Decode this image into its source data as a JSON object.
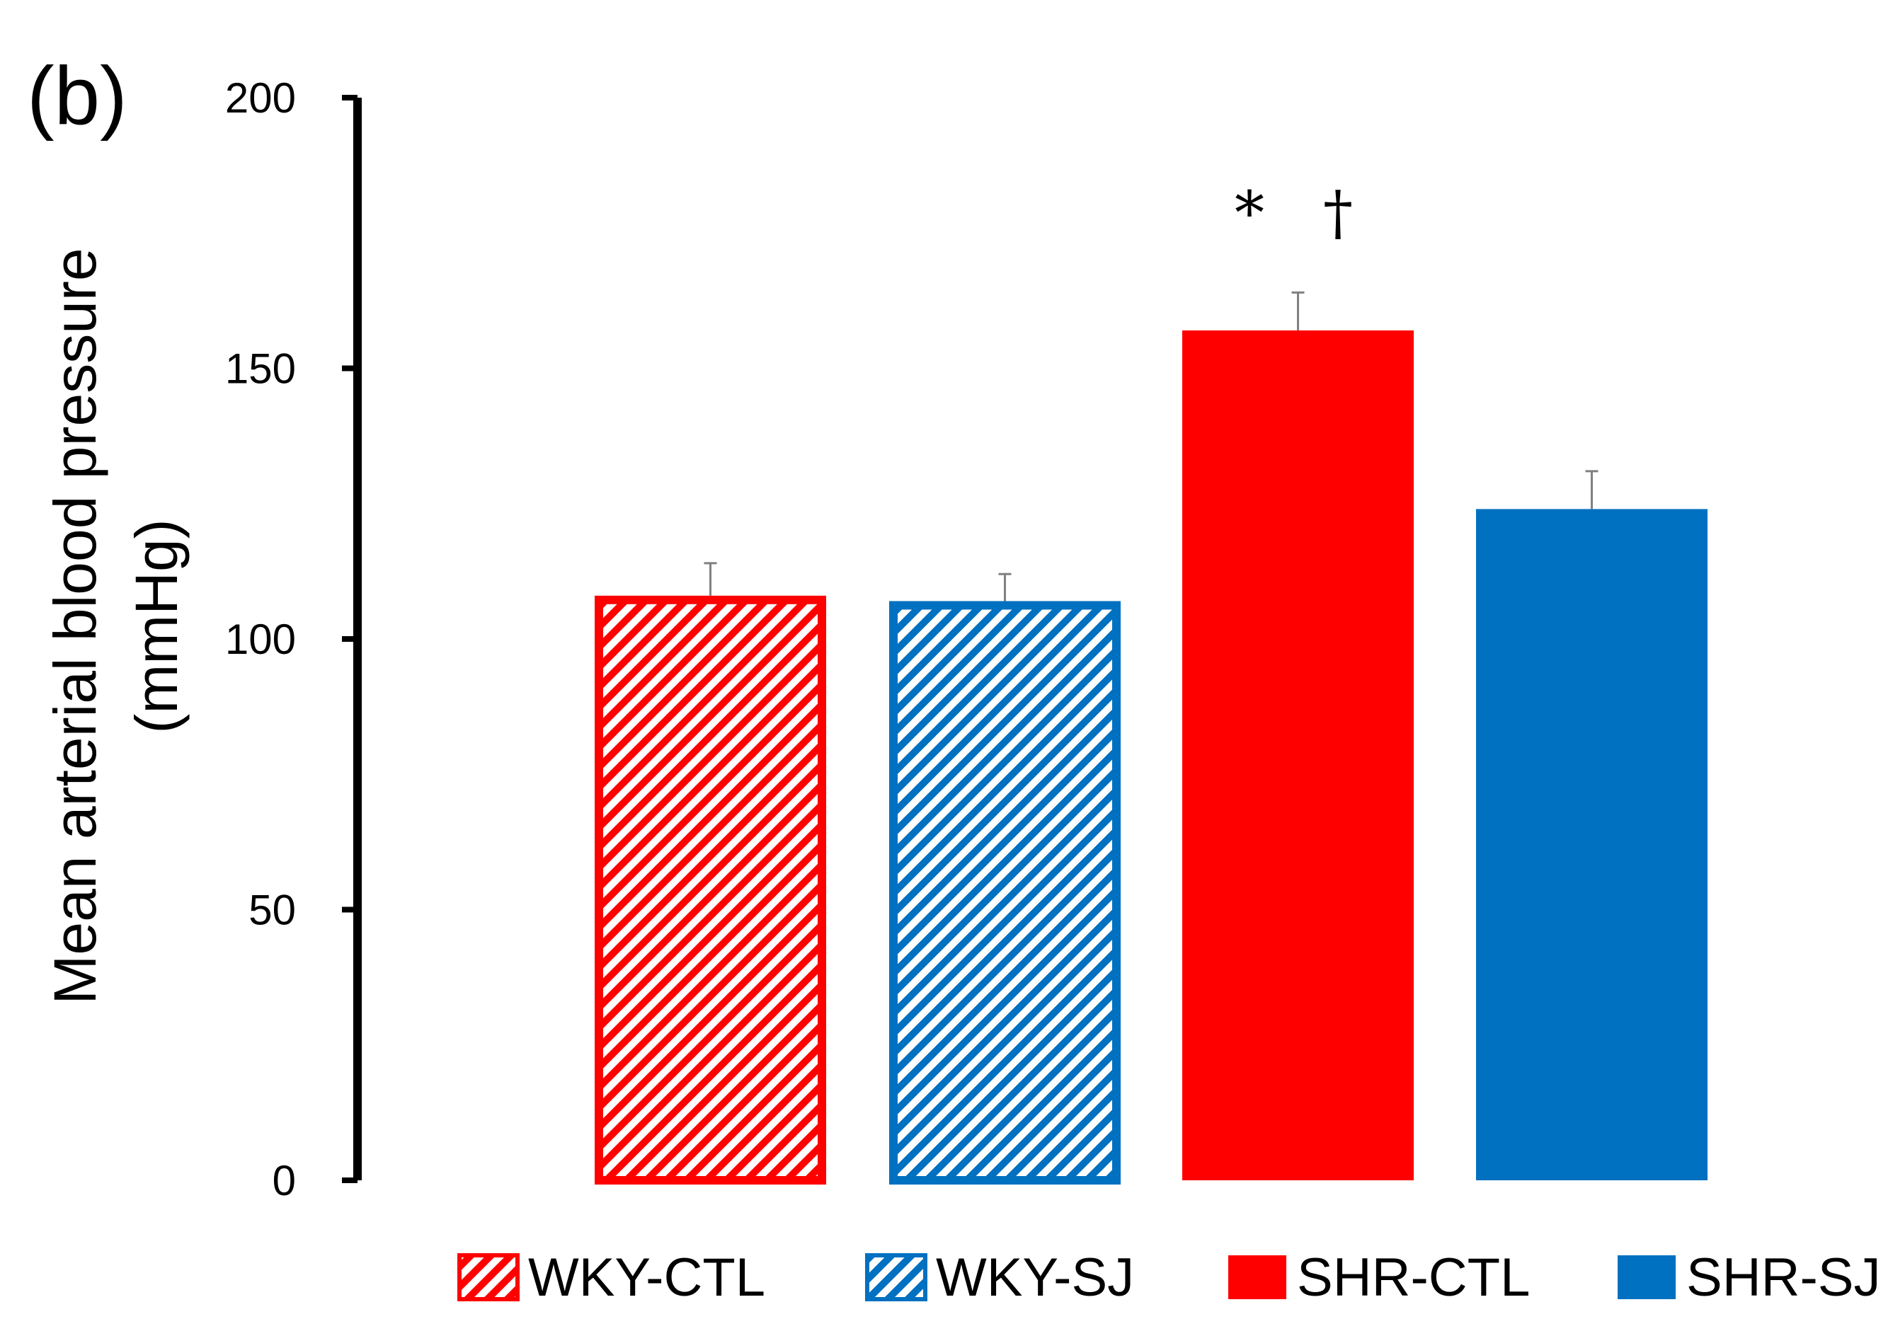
{
  "chart_data": {
    "type": "bar",
    "panel_label": "(b)",
    "ylabel_line1": "Mean arterial blood pressure",
    "ylabel_line2": "(mmHg)",
    "xlabel": "",
    "ylim": [
      0,
      200
    ],
    "yticks": [
      0,
      50,
      100,
      150,
      200
    ],
    "grid": false,
    "legend_position": "bottom",
    "categories": [
      "WKY-CTL",
      "WKY-SJ",
      "SHR-CTL",
      "SHR-SJ"
    ],
    "values": [
      108,
      107,
      157,
      124
    ],
    "errors": [
      6,
      5,
      7,
      7
    ],
    "colors": [
      "#ff0000",
      "#0070c0",
      "#ff0000",
      "#0070c0"
    ],
    "fills": [
      "hatched",
      "hatched",
      "solid",
      "solid"
    ],
    "annotations": [
      {
        "category": "SHR-CTL",
        "symbols": [
          "*",
          "†"
        ]
      }
    ]
  }
}
